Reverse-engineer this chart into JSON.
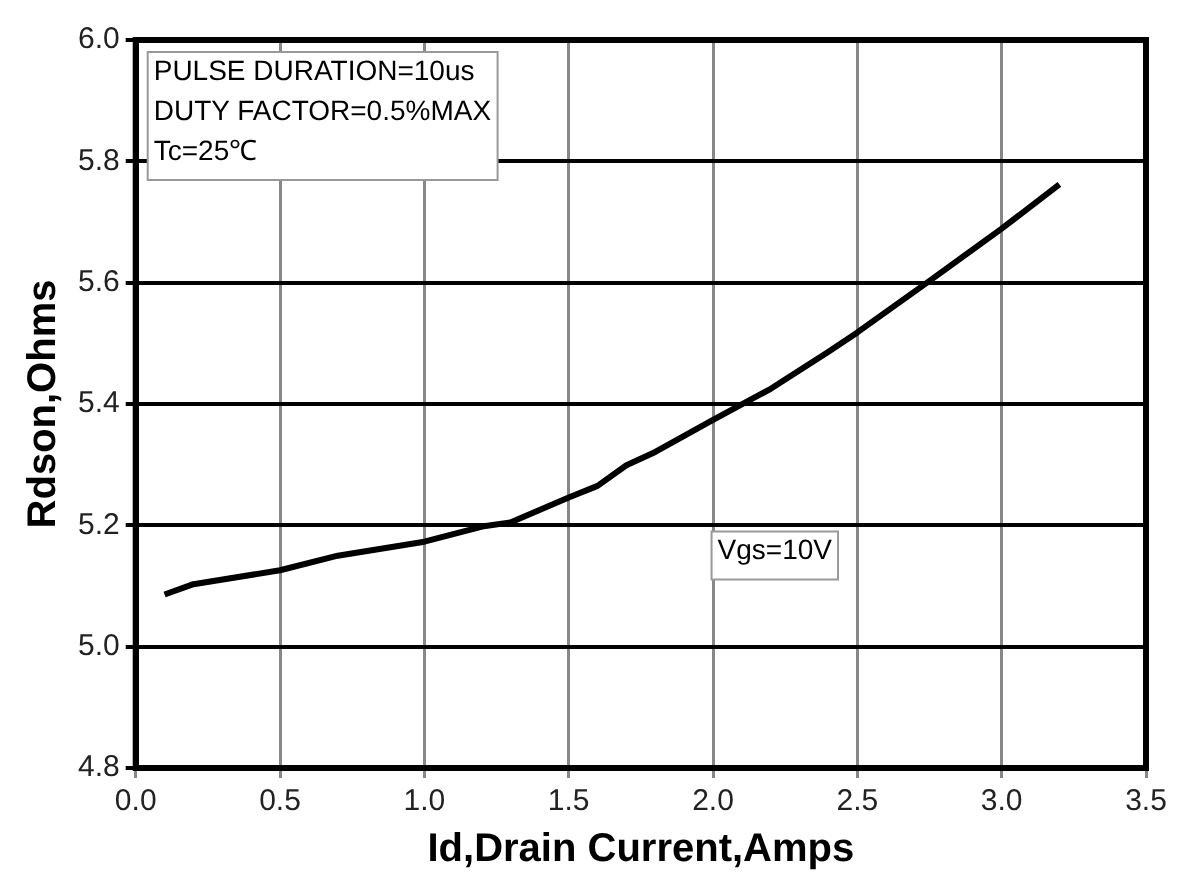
{
  "chart_data": {
    "type": "line",
    "xlabel": "Id,Drain Current,Amps",
    "ylabel": "Rdson,Ohms",
    "x": [
      0.1,
      0.2,
      0.5,
      0.7,
      1.0,
      1.2,
      1.3,
      1.5,
      1.6,
      1.7,
      1.8,
      2.0,
      2.2,
      2.4,
      2.5,
      2.75,
      3.0,
      3.2
    ],
    "series": [
      {
        "color": "#000000",
        "values": [
          5.086,
          5.103,
          5.126,
          5.15,
          5.173,
          5.198,
          5.205,
          5.246,
          5.265,
          5.299,
          5.321,
          5.374,
          5.425,
          5.486,
          5.518,
          5.603,
          5.689,
          5.762
        ]
      }
    ],
    "xlim": [
      0,
      3.5
    ],
    "xticks": [
      {
        "value": 0,
        "label": "0.0"
      },
      0.5,
      {
        "value": 1,
        "label": "1.0"
      },
      1.5,
      {
        "value": 2,
        "label": "2.0"
      },
      2.5,
      {
        "value": 3,
        "label": "3.0"
      },
      3.5
    ],
    "ylim": [
      4.8,
      6.0
    ],
    "yticks": [
      4.8,
      {
        "value": 5,
        "label": "5.0"
      },
      5.2,
      5.4,
      5.6,
      5.8,
      {
        "value": 6,
        "label": "6.0"
      }
    ],
    "grid": true,
    "legend": false,
    "marker": "none",
    "line_style": "solid",
    "annotations": [
      "PULSE DURATION=10us",
      "DUTY FACTOR=0.5%MAX",
      "Tc=25℃",
      "Vgs=10V"
    ]
  }
}
